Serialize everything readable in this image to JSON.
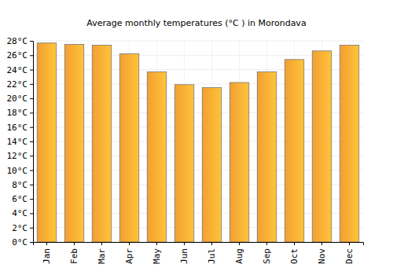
{
  "chart_data": {
    "type": "bar",
    "title": "Average monthly temperatures (°C ) in Morondava",
    "categories": [
      "Jan",
      "Feb",
      "Mar",
      "Apr",
      "May",
      "Jun",
      "Jul",
      "Aug",
      "Sep",
      "Oct",
      "Nov",
      "Dec"
    ],
    "values": [
      27.7,
      27.5,
      27.4,
      26.2,
      23.7,
      21.9,
      21.5,
      22.2,
      23.7,
      25.4,
      26.6,
      27.4
    ],
    "color": "#ffa834",
    "ylim": [
      0,
      28
    ],
    "yticks": [
      {
        "value": 0,
        "label": "0°C"
      },
      {
        "value": 2,
        "label": "2°C"
      },
      {
        "value": 4,
        "label": "4°C"
      },
      {
        "value": 6,
        "label": "6°C"
      },
      {
        "value": 8,
        "label": "8°C"
      },
      {
        "value": 10,
        "label": "10°C"
      },
      {
        "value": 12,
        "label": "12°C"
      },
      {
        "value": 14,
        "label": "14°C"
      },
      {
        "value": 16,
        "label": "16°C"
      },
      {
        "value": 18,
        "label": "18°C"
      },
      {
        "value": 20,
        "label": "20°C"
      },
      {
        "value": 22,
        "label": "22°C"
      },
      {
        "value": 24,
        "label": "24°C"
      },
      {
        "value": 26,
        "label": "26°C"
      },
      {
        "value": 28,
        "label": "28°C"
      }
    ],
    "grid": true
  }
}
